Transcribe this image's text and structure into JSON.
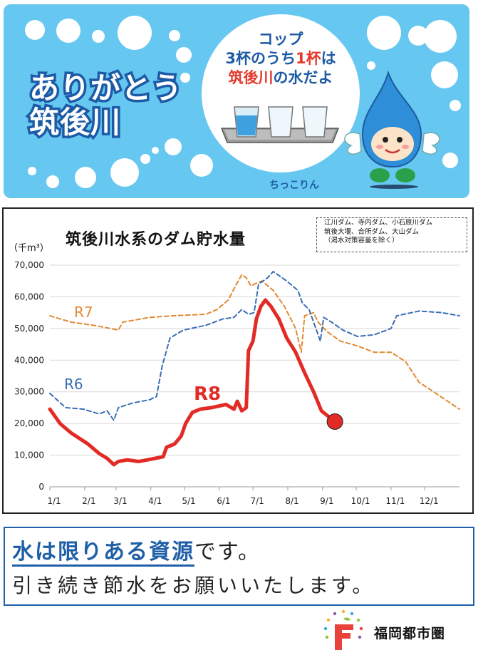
{
  "banner": {
    "headline_line1": "ありがとう",
    "headline_line2": "筑後川",
    "cup_line1": "コップ",
    "cup_line2_pre": "3杯のうち",
    "cup_line2_em": "1杯",
    "cup_line2_post": "は",
    "cup_line3": "筑後川の水だよ",
    "mascot_name": "ちっこりん"
  },
  "colors": {
    "banner_bg": "#66c7f0",
    "headline_stroke": "#1d5aa6",
    "r6": "#3a6db5",
    "r7": "#e08a35",
    "r8": "#e32b26",
    "message": "#1f5fa8"
  },
  "chart_data": {
    "type": "line",
    "title": "筑後川水系のダム貯水量",
    "unit_label": "（千m³）",
    "note_lines": [
      "江川ダム、寺内ダム、小石原川ダム",
      "筑後大堰、合所ダム、大山ダム",
      "（渇水対策容量を除く）"
    ],
    "x_ticks": [
      "1/1",
      "2/1",
      "3/1",
      "4/1",
      "5/1",
      "6/1",
      "7/1",
      "8/1",
      "9/1",
      "10/1",
      "11/1",
      "12/1"
    ],
    "y_tick_labels": [
      "0",
      "10,000",
      "20,000",
      "30,000",
      "40,000",
      "50,000",
      "60,000",
      "70,000"
    ],
    "y_ticks": [
      0,
      10000,
      20000,
      30000,
      40000,
      50000,
      60000,
      70000
    ],
    "ylim": [
      0,
      70000
    ],
    "xlim": [
      1,
      366
    ],
    "grid": true,
    "series": [
      {
        "name": "R6",
        "color_key": "r6",
        "style": "dashed",
        "points": [
          [
            1,
            29500
          ],
          [
            15,
            25000
          ],
          [
            31,
            24500
          ],
          [
            45,
            23000
          ],
          [
            52,
            24000
          ],
          [
            58,
            21000
          ],
          [
            62,
            25000
          ],
          [
            75,
            26500
          ],
          [
            90,
            27500
          ],
          [
            96,
            28500
          ],
          [
            101,
            38000
          ],
          [
            108,
            47000
          ],
          [
            120,
            49500
          ],
          [
            140,
            51000
          ],
          [
            155,
            53000
          ],
          [
            165,
            53500
          ],
          [
            172,
            56000
          ],
          [
            178,
            54500
          ],
          [
            183,
            55000
          ],
          [
            187,
            64000
          ],
          [
            195,
            66000
          ],
          [
            200,
            68000
          ],
          [
            212,
            65000
          ],
          [
            222,
            62000
          ],
          [
            226,
            58000
          ],
          [
            232,
            56000
          ],
          [
            238,
            50000
          ],
          [
            242,
            46000
          ],
          [
            245,
            53500
          ],
          [
            252,
            52000
          ],
          [
            262,
            49500
          ],
          [
            275,
            47500
          ],
          [
            290,
            48000
          ],
          [
            305,
            50000
          ],
          [
            310,
            54000
          ],
          [
            330,
            55500
          ],
          [
            350,
            55000
          ],
          [
            366,
            54000
          ]
        ]
      },
      {
        "name": "R7",
        "color_key": "r7",
        "style": "dashed",
        "points": [
          [
            1,
            54000
          ],
          [
            20,
            52000
          ],
          [
            40,
            51000
          ],
          [
            55,
            50000
          ],
          [
            62,
            49500
          ],
          [
            66,
            52000
          ],
          [
            90,
            53500
          ],
          [
            110,
            54000
          ],
          [
            140,
            54500
          ],
          [
            150,
            56000
          ],
          [
            160,
            59000
          ],
          [
            165,
            62500
          ],
          [
            172,
            67000
          ],
          [
            176,
            66000
          ],
          [
            180,
            63500
          ],
          [
            190,
            65000
          ],
          [
            200,
            62000
          ],
          [
            210,
            57000
          ],
          [
            220,
            50000
          ],
          [
            225,
            42500
          ],
          [
            228,
            54000
          ],
          [
            236,
            55000
          ],
          [
            240,
            52000
          ],
          [
            248,
            49000
          ],
          [
            260,
            46000
          ],
          [
            275,
            44500
          ],
          [
            290,
            42500
          ],
          [
            305,
            42500
          ],
          [
            318,
            39500
          ],
          [
            330,
            33000
          ],
          [
            345,
            29500
          ],
          [
            366,
            24500
          ]
        ]
      },
      {
        "name": "R8",
        "color_key": "r8",
        "style": "solid",
        "points": [
          [
            1,
            24500
          ],
          [
            10,
            20000
          ],
          [
            20,
            17000
          ],
          [
            35,
            13500
          ],
          [
            45,
            10500
          ],
          [
            52,
            9000
          ],
          [
            58,
            7000
          ],
          [
            62,
            8000
          ],
          [
            70,
            8500
          ],
          [
            80,
            8000
          ],
          [
            88,
            8500
          ],
          [
            95,
            9000
          ],
          [
            102,
            9500
          ],
          [
            105,
            12500
          ],
          [
            112,
            13500
          ],
          [
            118,
            16000
          ],
          [
            122,
            20000
          ],
          [
            128,
            23500
          ],
          [
            135,
            24500
          ],
          [
            145,
            25000
          ],
          [
            158,
            26000
          ],
          [
            165,
            24500
          ],
          [
            168,
            27000
          ],
          [
            172,
            24000
          ],
          [
            176,
            25000
          ],
          [
            178,
            43000
          ],
          [
            182,
            46000
          ],
          [
            185,
            53000
          ],
          [
            189,
            57000
          ],
          [
            193,
            59000
          ],
          [
            198,
            57000
          ],
          [
            205,
            53000
          ],
          [
            212,
            47000
          ],
          [
            220,
            42500
          ],
          [
            228,
            36000
          ],
          [
            236,
            30000
          ],
          [
            243,
            24000
          ],
          [
            250,
            22000
          ],
          [
            255,
            20600
          ]
        ]
      }
    ],
    "series_labels": {
      "r6": "R6",
      "r7": "R7",
      "r8": "R8"
    },
    "endpoint_marker": {
      "x": 255,
      "y": 20600
    }
  },
  "message": {
    "emphasis": "水は限りある資源",
    "tail": "です。",
    "line2": "引き続き節水をお願いいたします。"
  },
  "logo": {
    "text": "福岡都市圏",
    "mark_letter": "F"
  }
}
